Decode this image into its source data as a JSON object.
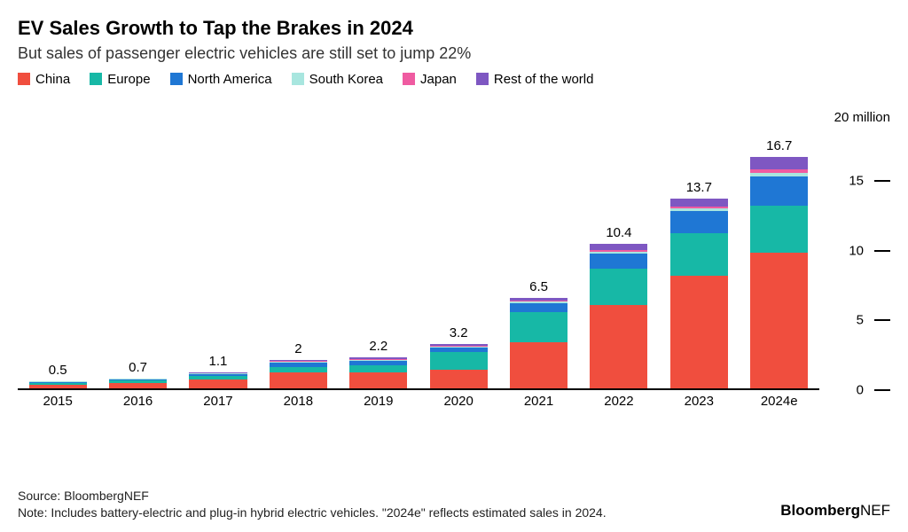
{
  "title": "EV Sales Growth to Tap the Brakes in 2024",
  "subtitle": "But sales of passenger electric vehicles are still set to jump 22%",
  "legend": {
    "items": [
      {
        "name": "China",
        "color": "#f04e3e"
      },
      {
        "name": "Europe",
        "color": "#17b8a6"
      },
      {
        "name": "North America",
        "color": "#1f77d4"
      },
      {
        "name": "South Korea",
        "color": "#a8e6df"
      },
      {
        "name": "Japan",
        "color": "#ef5ba1"
      },
      {
        "name": "Rest of the world",
        "color": "#7e57c2"
      }
    ]
  },
  "chart": {
    "type": "stacked-bar",
    "y_unit": "20 million",
    "y_max": 20,
    "y_ticks": [
      0,
      5,
      10,
      15
    ],
    "bar_width_ratio": 0.72,
    "categories": [
      "2015",
      "2016",
      "2017",
      "2018",
      "2019",
      "2020",
      "2021",
      "2022",
      "2023",
      "2024e"
    ],
    "totals": [
      0.5,
      0.7,
      1.1,
      2.0,
      2.2,
      3.2,
      6.5,
      10.4,
      13.7,
      16.7
    ],
    "series_order": [
      "China",
      "Europe",
      "North America",
      "South Korea",
      "Japan",
      "Rest of the world"
    ],
    "colors": {
      "China": "#f04e3e",
      "Europe": "#17b8a6",
      "North America": "#1f77d4",
      "South Korea": "#a8e6df",
      "Japan": "#ef5ba1",
      "Rest of the world": "#7e57c2"
    },
    "stacks": [
      {
        "China": 0.2,
        "Europe": 0.15,
        "North America": 0.1,
        "South Korea": 0.02,
        "Japan": 0.02,
        "Rest of the world": 0.01
      },
      {
        "China": 0.34,
        "Europe": 0.2,
        "North America": 0.1,
        "South Korea": 0.02,
        "Japan": 0.02,
        "Rest of the world": 0.02
      },
      {
        "China": 0.58,
        "Europe": 0.28,
        "North America": 0.15,
        "South Korea": 0.03,
        "Japan": 0.03,
        "Rest of the world": 0.03
      },
      {
        "China": 1.1,
        "Europe": 0.4,
        "North America": 0.35,
        "South Korea": 0.05,
        "Japan": 0.05,
        "Rest of the world": 0.05
      },
      {
        "China": 1.1,
        "Europe": 0.55,
        "North America": 0.33,
        "South Korea": 0.06,
        "Japan": 0.05,
        "Rest of the world": 0.11
      },
      {
        "China": 1.3,
        "Europe": 1.3,
        "North America": 0.35,
        "South Korea": 0.06,
        "Japan": 0.04,
        "Rest of the world": 0.15
      },
      {
        "China": 3.3,
        "Europe": 2.2,
        "North America": 0.65,
        "South Korea": 0.1,
        "Japan": 0.05,
        "Rest of the world": 0.2
      },
      {
        "China": 6.0,
        "Europe": 2.6,
        "North America": 1.1,
        "South Korea": 0.15,
        "Japan": 0.1,
        "Rest of the world": 0.45
      },
      {
        "China": 8.1,
        "Europe": 3.1,
        "North America": 1.6,
        "South Korea": 0.17,
        "Japan": 0.13,
        "Rest of the world": 0.6
      },
      {
        "China": 9.8,
        "Europe": 3.4,
        "North America": 2.1,
        "South Korea": 0.25,
        "Japan": 0.25,
        "Rest of the world": 0.9
      }
    ],
    "axis_color": "#000000",
    "background_color": "#ffffff",
    "label_fontsize": 15,
    "title_fontsize": 22,
    "subtitle_fontsize": 18
  },
  "source_line": "Source: BloombergNEF",
  "note_line": "Note: Includes battery-electric and plug-in hybrid electric vehicles. \"2024e\" reflects estimated sales in 2024.",
  "brand": {
    "bold": "Bloomberg",
    "light": "NEF"
  }
}
